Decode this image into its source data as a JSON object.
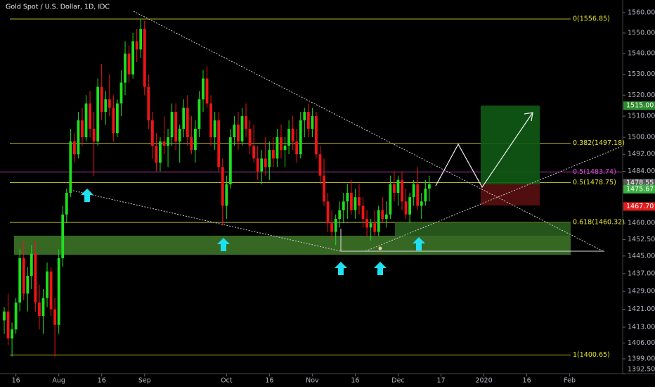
{
  "chart_data": {
    "type": "candlestick",
    "title": "Gold Spot / U.S. Dollar, 1D, IDC",
    "up_color": "#1ee01e",
    "down_color": "#f01414",
    "log": true,
    "ylim": [
      1392.5,
      1566.2
    ],
    "xlim": [
      -1.08,
      158.4
    ],
    "yticks": [
      {
        "value": 1560,
        "label": "1560.00"
      },
      {
        "value": 1550,
        "label": "1550.00"
      },
      {
        "value": 1540,
        "label": "1540.00"
      },
      {
        "value": 1530,
        "label": "1530.00"
      },
      {
        "value": 1520,
        "label": "1520.00"
      },
      {
        "value": 1510,
        "label": "1510.00"
      },
      {
        "value": 1500,
        "label": "1500.00"
      },
      {
        "value": 1492,
        "label": "1492.00"
      },
      {
        "value": 1484,
        "label": "1484.00"
      },
      {
        "value": 1460,
        "label": "1460.00"
      },
      {
        "value": 1452.5,
        "label": "1452.50"
      },
      {
        "value": 1445,
        "label": "1445.00"
      },
      {
        "value": 1437,
        "label": "1437.00"
      },
      {
        "value": 1429,
        "label": "1429.00"
      },
      {
        "value": 1421,
        "label": "1421.00"
      },
      {
        "value": 1413,
        "label": "1413.00"
      },
      {
        "value": 1406,
        "label": "1406.00"
      },
      {
        "value": 1399,
        "label": "1399.00"
      },
      {
        "value": 1392.5,
        "label": "1392.50"
      }
    ],
    "xticks": [
      {
        "value": 3,
        "label": "16"
      },
      {
        "value": 14,
        "label": "Aug"
      },
      {
        "value": 25,
        "label": "16"
      },
      {
        "value": 36,
        "label": "Sep"
      },
      {
        "value": 57,
        "label": "Oct"
      },
      {
        "value": 68,
        "label": "16"
      },
      {
        "value": 79,
        "label": "Nov"
      },
      {
        "value": 90,
        "label": "16"
      },
      {
        "value": 101,
        "label": "Dec"
      },
      {
        "value": 112,
        "label": "17"
      },
      {
        "value": 123,
        "label": "2020"
      },
      {
        "value": 134,
        "label": "16"
      },
      {
        "value": 145,
        "label": "Feb"
      }
    ],
    "levels": [
      {
        "label": "0(1556.85)",
        "value": 1556.85,
        "color": "#b5b52a"
      },
      {
        "label": "0.382(1497.18)",
        "value": 1497.18,
        "color": "#b5b52a"
      },
      {
        "label": "0.5(1483.74)",
        "value": 1483.74,
        "color": "#b03cb0"
      },
      {
        "label": "0.5(1478.75)",
        "value": 1478.75,
        "color": "#b5b52a"
      },
      {
        "label": "0.618(1460.32)",
        "value": 1460.32,
        "color": "#b5b52a"
      },
      {
        "label": "1(1400.65)",
        "value": 1400.65,
        "color": "#b5b52a"
      }
    ],
    "price_labels": [
      {
        "label": "1515.00",
        "value": 1515,
        "color": "#2e8b2e"
      },
      {
        "label": "1478.55",
        "value": 1478.55,
        "color": "#5a5a5a"
      },
      {
        "label": "1475.67",
        "value": 1475.67,
        "color": "#3cb043"
      },
      {
        "label": "1467.70",
        "value": 1467.7,
        "color": "#e01e1e"
      }
    ],
    "candles": [
      [
        1416,
        1422,
        1410,
        1420
      ],
      [
        1420,
        1428,
        1405,
        1408
      ],
      [
        1408,
        1415,
        1400,
        1412
      ],
      [
        1412,
        1426,
        1410,
        1424
      ],
      [
        1424,
        1448,
        1420,
        1444
      ],
      [
        1444,
        1452,
        1425,
        1428
      ],
      [
        1428,
        1440,
        1420,
        1436
      ],
      [
        1436,
        1450,
        1430,
        1446
      ],
      [
        1446,
        1452,
        1420,
        1424
      ],
      [
        1424,
        1432,
        1412,
        1418
      ],
      [
        1418,
        1430,
        1410,
        1426
      ],
      [
        1426,
        1442,
        1422,
        1438
      ],
      [
        1438,
        1440,
        1418,
        1421
      ],
      [
        1421,
        1426,
        1400,
        1414
      ],
      [
        1414,
        1448,
        1410,
        1444
      ],
      [
        1444,
        1468,
        1440,
        1464
      ],
      [
        1464,
        1476,
        1460,
        1474
      ],
      [
        1474,
        1504,
        1472,
        1498
      ],
      [
        1498,
        1502,
        1488,
        1492
      ],
      [
        1492,
        1512,
        1490,
        1508
      ],
      [
        1508,
        1514,
        1496,
        1500
      ],
      [
        1500,
        1520,
        1498,
        1516
      ],
      [
        1516,
        1522,
        1500,
        1504
      ],
      [
        1504,
        1512,
        1482,
        1498
      ],
      [
        1498,
        1528,
        1496,
        1524
      ],
      [
        1524,
        1535,
        1508,
        1512
      ],
      [
        1512,
        1522,
        1506,
        1518
      ],
      [
        1518,
        1530,
        1510,
        1514
      ],
      [
        1514,
        1520,
        1498,
        1502
      ],
      [
        1502,
        1518,
        1500,
        1516
      ],
      [
        1516,
        1532,
        1510,
        1526
      ],
      [
        1526,
        1546,
        1520,
        1540
      ],
      [
        1540,
        1544,
        1526,
        1530
      ],
      [
        1530,
        1550,
        1528,
        1546
      ],
      [
        1546,
        1552,
        1536,
        1542
      ],
      [
        1542,
        1557,
        1538,
        1552
      ],
      [
        1552,
        1556,
        1520,
        1524
      ],
      [
        1524,
        1530,
        1504,
        1508
      ],
      [
        1508,
        1512,
        1490,
        1496
      ],
      [
        1496,
        1502,
        1484,
        1488
      ],
      [
        1488,
        1500,
        1484,
        1498
      ],
      [
        1498,
        1510,
        1492,
        1496
      ],
      [
        1496,
        1504,
        1486,
        1500
      ],
      [
        1500,
        1516,
        1496,
        1512
      ],
      [
        1512,
        1516,
        1494,
        1498
      ],
      [
        1498,
        1506,
        1488,
        1504
      ],
      [
        1504,
        1518,
        1500,
        1514
      ],
      [
        1514,
        1520,
        1496,
        1500
      ],
      [
        1500,
        1510,
        1492,
        1494
      ],
      [
        1494,
        1508,
        1488,
        1504
      ],
      [
        1504,
        1522,
        1500,
        1518
      ],
      [
        1518,
        1532,
        1512,
        1528
      ],
      [
        1528,
        1534,
        1514,
        1516
      ],
      [
        1516,
        1520,
        1496,
        1500
      ],
      [
        1500,
        1512,
        1494,
        1508
      ],
      [
        1508,
        1512,
        1484,
        1486
      ],
      [
        1486,
        1490,
        1459,
        1468
      ],
      [
        1468,
        1482,
        1462,
        1478
      ],
      [
        1478,
        1504,
        1476,
        1500
      ],
      [
        1500,
        1510,
        1496,
        1506
      ],
      [
        1506,
        1512,
        1494,
        1498
      ],
      [
        1498,
        1514,
        1496,
        1510
      ],
      [
        1510,
        1516,
        1500,
        1504
      ],
      [
        1504,
        1508,
        1492,
        1496
      ],
      [
        1496,
        1506,
        1488,
        1490
      ],
      [
        1490,
        1496,
        1480,
        1484
      ],
      [
        1484,
        1494,
        1478,
        1490
      ],
      [
        1490,
        1500,
        1482,
        1486
      ],
      [
        1486,
        1498,
        1480,
        1494
      ],
      [
        1494,
        1500,
        1486,
        1490
      ],
      [
        1490,
        1504,
        1486,
        1500
      ],
      [
        1500,
        1506,
        1490,
        1494
      ],
      [
        1494,
        1500,
        1486,
        1496
      ],
      [
        1496,
        1508,
        1492,
        1504
      ],
      [
        1504,
        1510,
        1494,
        1498
      ],
      [
        1498,
        1504,
        1488,
        1492
      ],
      [
        1492,
        1512,
        1490,
        1508
      ],
      [
        1508,
        1514,
        1500,
        1512
      ],
      [
        1512,
        1516,
        1500,
        1504
      ],
      [
        1504,
        1514,
        1500,
        1510
      ],
      [
        1510,
        1512,
        1490,
        1492
      ],
      [
        1492,
        1496,
        1478,
        1482
      ],
      [
        1482,
        1490,
        1468,
        1470
      ],
      [
        1470,
        1474,
        1456,
        1460
      ],
      [
        1460,
        1466,
        1452,
        1456
      ],
      [
        1456,
        1464,
        1450,
        1462
      ],
      [
        1462,
        1470,
        1458,
        1466
      ],
      [
        1466,
        1474,
        1460,
        1470
      ],
      [
        1470,
        1478,
        1462,
        1474
      ],
      [
        1474,
        1480,
        1464,
        1466
      ],
      [
        1466,
        1476,
        1462,
        1472
      ],
      [
        1472,
        1478,
        1464,
        1468
      ],
      [
        1468,
        1472,
        1458,
        1462
      ],
      [
        1462,
        1466,
        1454,
        1458
      ],
      [
        1458,
        1462,
        1452,
        1460
      ],
      [
        1460,
        1466,
        1454,
        1456
      ],
      [
        1456,
        1468,
        1454,
        1466
      ],
      [
        1466,
        1472,
        1460,
        1462
      ],
      [
        1462,
        1470,
        1458,
        1464
      ],
      [
        1464,
        1482,
        1462,
        1478
      ],
      [
        1478,
        1484,
        1470,
        1474
      ],
      [
        1474,
        1482,
        1468,
        1480
      ],
      [
        1480,
        1484,
        1466,
        1470
      ],
      [
        1470,
        1476,
        1462,
        1464
      ],
      [
        1464,
        1474,
        1460,
        1472
      ],
      [
        1472,
        1480,
        1468,
        1478
      ],
      [
        1478,
        1486,
        1466,
        1468
      ],
      [
        1468,
        1474,
        1462,
        1470
      ],
      [
        1470,
        1480,
        1468,
        1476
      ],
      [
        1476,
        1482,
        1470,
        1478
      ]
    ]
  }
}
